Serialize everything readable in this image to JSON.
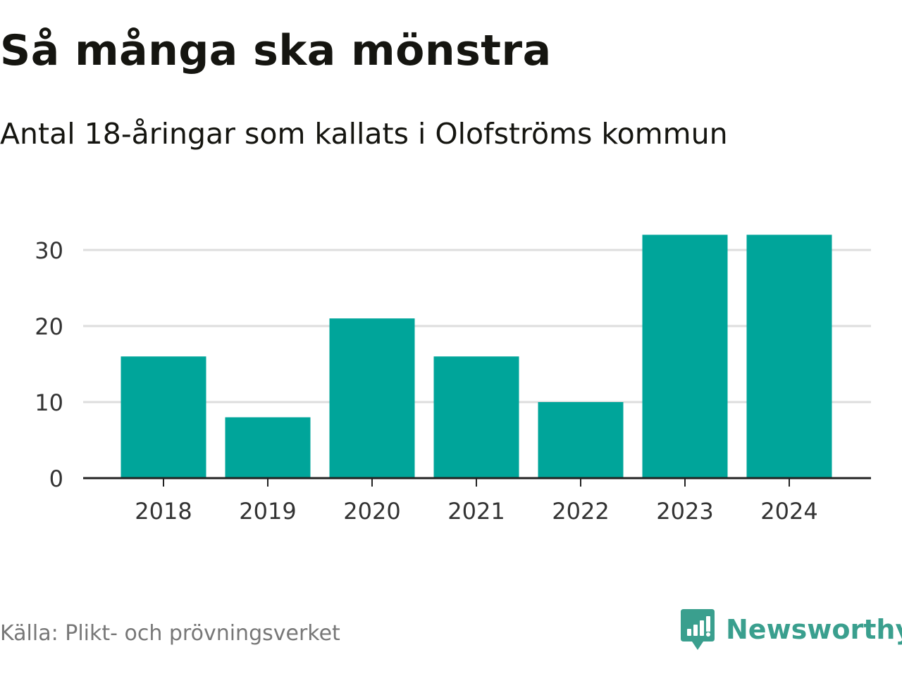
{
  "header": {
    "title": "Så många ska mönstra",
    "subtitle": "Antal 18-åringar som kallats i Olofströms kommun"
  },
  "footer": {
    "source": "Källa: Plikt- och prövningsverket",
    "brand": "Newsworthy",
    "brand_icon": "newsworthy-logo-icon",
    "brand_color": "#3a9f8e"
  },
  "colors": {
    "bar": "#00a59a",
    "grid": "#dddddd",
    "axis": "#222222",
    "tick_text": "#333333"
  },
  "chart_data": {
    "type": "bar",
    "title": "Så många ska mönstra",
    "subtitle": "Antal 18-åringar som kallats i Olofströms kommun",
    "xlabel": "",
    "ylabel": "",
    "categories": [
      "2018",
      "2019",
      "2020",
      "2021",
      "2022",
      "2023",
      "2024"
    ],
    "values": [
      16,
      8,
      21,
      16,
      10,
      32,
      32
    ],
    "ylim": [
      0,
      35
    ],
    "yticks": [
      0,
      10,
      20,
      30
    ],
    "grid": true,
    "legend": "none"
  }
}
